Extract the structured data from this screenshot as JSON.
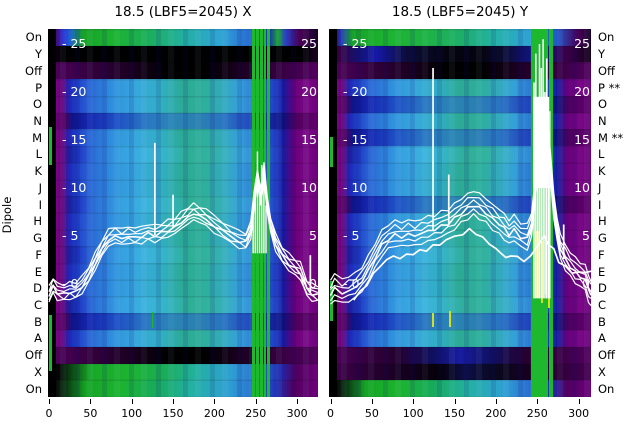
{
  "titles": {
    "left": "18.5 (LBF5=2045) X",
    "right": "18.5 (LBF5=2045) Y"
  },
  "axes": {
    "dipole_label": "Dipole",
    "row_labels_left": [
      "On",
      "Y",
      "Off",
      "P",
      "O",
      "N",
      "M",
      "L",
      "K",
      "J",
      "I",
      "H",
      "G",
      "F",
      "E",
      "D",
      "C",
      "B",
      "A",
      "Off",
      "X",
      "On"
    ],
    "row_labels_right": [
      "On",
      "Y",
      "Off",
      "P **",
      "O",
      "N",
      "M **",
      "L",
      "K",
      "J",
      "I",
      "H",
      "G",
      "F",
      "E",
      "D",
      "C",
      "B",
      "A",
      "Off",
      "X",
      "On"
    ],
    "x_tick_labels": [
      "0",
      "50",
      "100",
      "150",
      "200",
      "250",
      "300"
    ],
    "inner_value_ticks": [
      25,
      20,
      15,
      10,
      5,
      0
    ]
  },
  "palette": {
    "white": "#ffffff",
    "black": "#000000",
    "purple": "#7a0887",
    "green": "#1db82e",
    "yellow": "#d6df1f",
    "bands": {
      "onTop": "linear-gradient(90deg,#17002a 0%,#4a0058 2%,#2a2ad0 5.5%,#1f60d5 8%,#17a327 13%,#1db330 24%,#1bae55 36%,#23b0a0 50%,#2fa5d5 64%,#2a70d2 74%,#1d32bb 82%,#17a327 85%,#2a40c8 88%,#4a0058 93%,#17002a 100%)",
      "onTopY": "linear-gradient(90deg,#0c0016 0%,#3a0045 2%,#2236bb 4.5%,#17a327 9%,#1db330 22%,#1fb246 38%,#1dae6e 52%,#26b2aa 64%,#2fa2d6 77%,#2257c9 87%,#4a0058 95%,#17002a 100%)",
      "blackRow": "linear-gradient(90deg,#1a0022 0%,#000000 6%,#000000 94%,#1a0022 100%)",
      "blackY": "linear-gradient(90deg,#14001c 0%,#3a0045 4%,#121270 11%,#1618a8 18%,#0c0c38 30%,#040410 45%,#040410 58%,#0c0c38 68%,#141594 80%,#3a0045 91%,#14001c 100%)",
      "off": "linear-gradient(90deg,#52005e 0%,#3a0045 12%,#1c0022 30%,#000000 44%,#000000 58%,#1c0022 72%,#3a0045 88%,#52005e 100%)",
      "offBlue": "linear-gradient(90deg,#52005e 0%,#3a0045 10%,#26002e 25%,#101060 40%,#181ca0 50%,#101060 62%,#26002e 75%,#3a0045 88%,#52005e 100%)",
      "body": "linear-gradient(90deg,#6c007a 0%,#7a0887 2.5%,#6c007a 5%,#1c28b8 8%,#2248cc 11.5%,#2a68d5 16%,#3090dd 24%,#38a8dc 33%,#31aec2 42%,#2caa94 50%,#2eae9c 58%,#33aabe 65%,#35a0d8 71%,#2a70d2 78%,#1f3ec4 84%,#14189f 87%,#6c007a 91.5%,#7a0887 96%,#6c007a 100%)",
      "bodyAlt": "linear-gradient(90deg,#6c007a 0%,#7a0887 2.5%,#6c007a 5%,#18209f 8%,#2040c8 12%,#2d74d8 18%,#35a0e0 27%,#3cb2de 36%,#35b4c4 44%,#2fae96 52%,#32b2a0 60%,#38aec4 67%,#38a4da 72%,#2c78d4 79%,#2244c8 84%,#161c9f 87%,#6c007a 91.5%,#7a0887 96%,#6c007a 100%)",
      "bodyDark": "linear-gradient(90deg,#60006e 0%,#6c007a 3%,#52005e 6%,#0e1488 9%,#1626b0 15%,#1e4ec4 25%,#2a78c2 37%,#2a84b4 47%,#2a80b0 55%,#2a74c2 65%,#1e38bc 79%,#0c107e 87%,#52005e 92%,#60006e 100%)",
      "onBottom": "linear-gradient(90deg,#000000 0%,#0a0a0a 3%,#0a3a12 7%,#16a426 14%,#1db330 27%,#18aa5c 40%,#24b1a2 53%,#2f9fd2 67%,#2a62d0 79%,#1f2cb2 85%,#52005e 91%,#6c007a 100%)",
      "xBrightLeft": "linear-gradient(90deg,#000000 0%,#050505 4%,#0c4a14 9%,#18a828 16%,#1db330 30%,#1aac52 42%,#23b0a0 55%,#2f9fd2 68%,#2a62d0 80%,#1e28ae 86%,#52005e 92%,#6c007a 100%)",
      "xDarkRight": "linear-gradient(90deg,#460052 0%,#30003a 10%,#160020 28%,#050008 42%,#0e0e46 52%,#08081e 64%,#160020 76%,#30003a 88%,#460052 100%)"
    }
  },
  "chart_data": {
    "type": "heatmap",
    "title_left": "18.5 (LBF5=2045) X",
    "title_right": "18.5 (LBF5=2045) Y",
    "x_ticks": [
      0,
      50,
      100,
      150,
      200,
      250,
      300
    ],
    "x_range": [
      0,
      325
    ],
    "inner_value_ticks": [
      25,
      20,
      15,
      10,
      5,
      0
    ],
    "row_categories": [
      "On",
      "Y",
      "Off",
      "P",
      "O",
      "N",
      "M",
      "L",
      "K",
      "J",
      "I",
      "H",
      "G",
      "F",
      "E",
      "D",
      "C",
      "B",
      "A",
      "Off",
      "X",
      "On"
    ],
    "flagged_rows_right": [
      "P",
      "M"
    ],
    "panels": [
      {
        "name": "X",
        "row_bands": [
          "onTop",
          "blackRow",
          "off",
          "body",
          "body",
          "bodyDark",
          "body",
          "bodyAlt",
          "body",
          "body",
          "bodyAlt",
          "body",
          "body",
          "bodyAlt",
          "body",
          "body",
          "bodyAlt",
          "bodyDark",
          "body",
          "off",
          "xBrightLeft",
          "onBottom"
        ],
        "edge_marks": [
          {
            "y0": 98,
            "y1": 136
          },
          {
            "y0": 286,
            "y1": 342
          }
        ],
        "stripes": [
          {
            "x": 246,
            "w": 2.2,
            "v0": -11.8,
            "v1": 26.6,
            "c": "green"
          },
          {
            "x": 250.5,
            "w": 2.0,
            "v0": -11.8,
            "v1": 26.6,
            "c": "green"
          },
          {
            "x": 255,
            "w": 2.6,
            "v0": -11.8,
            "v1": 26.6,
            "c": "green"
          },
          {
            "x": 259.5,
            "w": 2.0,
            "v0": -11.8,
            "v1": 26.6,
            "c": "green"
          },
          {
            "x": 264,
            "w": 2.2,
            "v0": -11.8,
            "v1": 26.6,
            "c": "green"
          },
          {
            "x": 124,
            "w": 1.6,
            "v0": -4.6,
            "v1": -2.9,
            "c": "green"
          }
        ],
        "blob": null,
        "bars": [
          {
            "x": 246,
            "w": 1.4,
            "t": 7.8,
            "b": 3.2
          },
          {
            "x": 248.6,
            "w": 1.4,
            "t": 10.5,
            "b": 3.2
          },
          {
            "x": 251.2,
            "w": 1.4,
            "t": 13.8,
            "b": 3.2
          },
          {
            "x": 253.8,
            "w": 1.4,
            "t": 9.8,
            "b": 3.2
          },
          {
            "x": 256.4,
            "w": 1.4,
            "t": 12.4,
            "b": 3.2
          },
          {
            "x": 259,
            "w": 1.4,
            "t": 10.2,
            "b": 3.2
          },
          {
            "x": 261.6,
            "w": 1.4,
            "t": 8.2,
            "b": 3.2
          }
        ],
        "series": {
          "x": [
            0,
            5,
            10,
            18,
            25,
            32,
            40,
            48,
            56,
            64,
            72,
            80,
            88,
            96,
            104,
            112,
            120,
            128,
            136,
            144,
            152,
            160,
            168,
            175,
            182,
            190,
            200,
            210,
            220,
            230,
            238,
            244,
            248,
            252,
            256,
            260,
            264,
            268,
            274,
            282,
            290,
            298,
            304,
            308,
            312,
            318,
            325
          ],
          "v": [
            -1.3,
            -0.3,
            -0.9,
            -1.1,
            -0.8,
            -0.9,
            -0.2,
            0.8,
            2.2,
            3.6,
            4.6,
            5.0,
            4.7,
            5.0,
            4.8,
            5.0,
            5.2,
            5.1,
            5.3,
            5.6,
            5.9,
            6.4,
            7.0,
            7.3,
            7.1,
            6.7,
            6.1,
            5.5,
            4.9,
            4.5,
            4.3,
            5.5,
            8.5,
            11.0,
            9.0,
            11.5,
            8.0,
            6.0,
            4.2,
            2.9,
            2.1,
            1.6,
            1.2,
            0.2,
            -0.6,
            -1.0,
            -1.2
          ],
          "offsets": [
            0,
            0.32,
            -0.32,
            0.66,
            -0.66,
            1.0
          ]
        },
        "lower": null,
        "spikes": [
          {
            "x": 128,
            "b": 5.1,
            "t": 14.7
          },
          {
            "x": 150,
            "b": 5.8,
            "t": 9.3
          },
          {
            "x": 316,
            "b": -1.0,
            "t": 3.0
          }
        ]
      },
      {
        "name": "Y",
        "row_bands": [
          "onTopY",
          "blackY",
          "off",
          "body",
          "bodyDark",
          "body",
          "bodyDark",
          "bodyAlt",
          "body",
          "body",
          "bodyDark",
          "body",
          "body",
          "bodyAlt",
          "body",
          "body",
          "bodyAlt",
          "bodyDark",
          "body",
          "offBlue",
          "xDarkRight",
          "onBottom"
        ],
        "edge_marks": [
          {
            "y0": 108,
            "y1": 138
          },
          {
            "y0": 252,
            "y1": 292
          }
        ],
        "stripes": [
          {
            "x": 243,
            "w": 2.0,
            "v0": -11.8,
            "v1": 26.6,
            "c": "green"
          },
          {
            "x": 246.5,
            "w": 2.0,
            "v0": -11.8,
            "v1": 26.6,
            "c": "green"
          },
          {
            "x": 250,
            "w": 2.4,
            "v0": -11.8,
            "v1": 26.6,
            "c": "green"
          },
          {
            "x": 253.5,
            "w": 2.0,
            "v0": -11.8,
            "v1": 26.6,
            "c": "green"
          },
          {
            "x": 257,
            "w": 2.4,
            "v0": -11.8,
            "v1": 26.6,
            "c": "green"
          },
          {
            "x": 260.5,
            "w": 2.0,
            "v0": -11.8,
            "v1": 26.6,
            "c": "green"
          },
          {
            "x": 264,
            "w": 2.0,
            "v0": -11.8,
            "v1": 26.6,
            "c": "green"
          },
          {
            "x": 267,
            "w": 1.6,
            "v0": -11.8,
            "v1": 26.6,
            "c": "green"
          },
          {
            "x": 249,
            "w": 2.0,
            "v0": -1.5,
            "v1": 5.5,
            "c": "yellow"
          },
          {
            "x": 254,
            "w": 2.0,
            "v0": -2.0,
            "v1": 4.5,
            "c": "yellow"
          },
          {
            "x": 259,
            "w": 2.0,
            "v0": -1.0,
            "v1": 5.0,
            "c": "yellow"
          },
          {
            "x": 263,
            "w": 1.6,
            "v0": -2.5,
            "v1": 3.5,
            "c": "yellow"
          },
          {
            "x": 123,
            "w": 1.6,
            "v0": -4.5,
            "v1": -3.0,
            "c": "yellow"
          },
          {
            "x": 143,
            "w": 1.6,
            "v0": -4.5,
            "v1": -2.8,
            "c": "yellow"
          }
        ],
        "blob": {
          "x0": 245,
          "x1": 264.5,
          "v0": 10,
          "v1": 19.5
        },
        "bars": [
          {
            "x": 245.2,
            "w": 1.5,
            "t": 21,
            "b": -1.5
          },
          {
            "x": 247.4,
            "w": 1.5,
            "t": 24,
            "b": -1.5
          },
          {
            "x": 249.6,
            "w": 1.5,
            "t": 18,
            "b": -1.5
          },
          {
            "x": 251.8,
            "w": 1.5,
            "t": 25,
            "b": -1.5
          },
          {
            "x": 254,
            "w": 1.5,
            "t": 22.5,
            "b": -1.5
          },
          {
            "x": 256.2,
            "w": 1.5,
            "t": 25.5,
            "b": -1.5
          },
          {
            "x": 258.4,
            "w": 1.5,
            "t": 20,
            "b": -1.5
          },
          {
            "x": 260.6,
            "w": 1.5,
            "t": 23.5,
            "b": -1.5
          },
          {
            "x": 262.8,
            "w": 1.5,
            "t": 14,
            "b": -1.5
          },
          {
            "x": 264.6,
            "w": 1.2,
            "t": 18,
            "b": -1.5
          }
        ],
        "series": {
          "x": [
            0,
            5,
            14,
            22,
            30,
            38,
            46,
            54,
            62,
            70,
            78,
            86,
            94,
            102,
            110,
            118,
            126,
            134,
            142,
            150,
            158,
            166,
            173,
            180,
            188,
            196,
            204,
            210,
            216,
            222,
            230,
            238,
            243,
            247,
            252,
            257,
            262,
            266,
            270,
            274,
            278,
            284,
            290,
            296,
            302,
            308,
            312,
            315
          ],
          "v": [
            -1.2,
            -0.5,
            -1.0,
            -0.7,
            -0.4,
            0.3,
            1.4,
            2.8,
            4.0,
            4.7,
            5.1,
            4.9,
            5.2,
            5.0,
            5.3,
            5.5,
            5.7,
            6.0,
            6.3,
            6.8,
            7.4,
            7.9,
            8.2,
            7.9,
            7.4,
            6.8,
            6.2,
            5.8,
            5.2,
            5.6,
            4.9,
            4.7,
            6.0,
            9.0,
            14.0,
            18.0,
            16.0,
            12.0,
            8.0,
            5.5,
            3.6,
            2.6,
            1.8,
            1.2,
            0.8,
            0.4,
            -0.7,
            -1.1
          ],
          "offsets": [
            0,
            0.45,
            -0.5,
            0.95,
            1.5,
            -1.05
          ]
        },
        "lower": {
          "x": [
            28,
            36,
            44,
            52,
            60,
            68,
            76,
            84,
            92,
            100,
            108,
            116,
            124,
            132,
            140,
            150,
            160,
            168,
            176,
            184,
            192,
            200,
            206,
            212,
            218,
            226,
            234,
            242,
            250,
            258,
            264,
            270,
            276,
            284,
            292,
            300,
            308,
            315
          ],
          "v": [
            -1.5,
            -0.9,
            0.0,
            1.0,
            1.9,
            2.5,
            2.9,
            2.7,
            3.0,
            3.2,
            3.4,
            3.6,
            3.9,
            4.2,
            4.5,
            4.9,
            5.3,
            5.6,
            5.3,
            4.8,
            4.2,
            3.7,
            3.3,
            2.6,
            3.1,
            2.7,
            2.5,
            2.8,
            4.0,
            5.0,
            4.2,
            3.5,
            2.4,
            1.7,
            1.3,
            1.1,
            1.3,
            1.2
          ]
        },
        "spikes": [
          {
            "x": 124,
            "b": 5.6,
            "t": 22.5
          },
          {
            "x": 143,
            "b": 6.3,
            "t": 11.4
          },
          {
            "x": 282,
            "b": 2.6,
            "t": 6.2
          }
        ]
      }
    ]
  }
}
